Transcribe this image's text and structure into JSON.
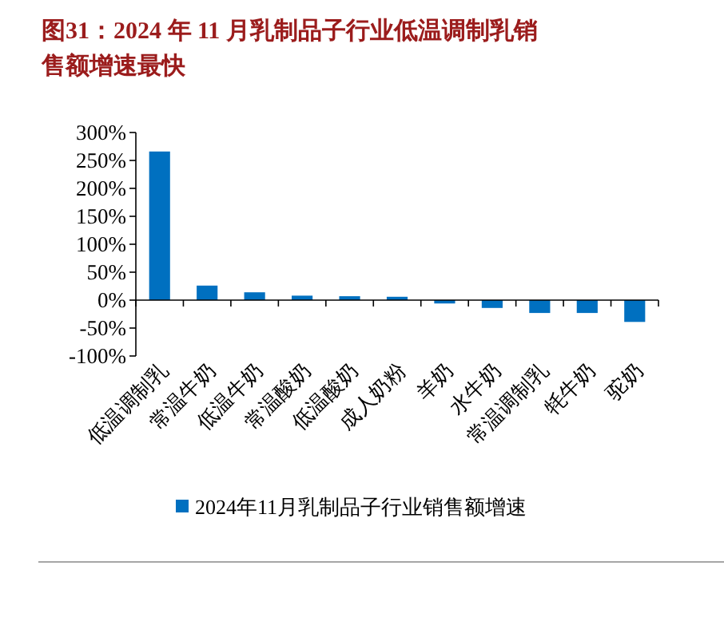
{
  "chart_data": {
    "type": "bar",
    "title": "图31：2024 年 11 月乳制品子行业低温调制乳销售额增速最快",
    "categories": [
      "低温调制乳",
      "常温牛奶",
      "低温牛奶",
      "常温酸奶",
      "低温酸奶",
      "成人奶粉",
      "羊奶",
      "水牛奶",
      "常温调制乳",
      "牦牛奶",
      "驼奶"
    ],
    "series": [
      {
        "name": "2024年11月乳制品子行业销售额增速",
        "color": "#0070c0",
        "values": [
          266,
          26,
          14,
          8,
          7,
          6,
          -6,
          -14,
          -23,
          -23,
          -39
        ]
      }
    ],
    "ylim": [
      -100,
      300
    ],
    "yticks": [
      {
        "value": -100,
        "label": "-100%"
      },
      {
        "value": -50,
        "label": "-50%"
      },
      {
        "value": 0,
        "label": "0%"
      },
      {
        "value": 50,
        "label": "50%"
      },
      {
        "value": 100,
        "label": "100%"
      },
      {
        "value": 150,
        "label": "150%"
      },
      {
        "value": 200,
        "label": "200%"
      },
      {
        "value": 250,
        "label": "250%"
      },
      {
        "value": 300,
        "label": "300%"
      }
    ],
    "legend": "bottom"
  }
}
